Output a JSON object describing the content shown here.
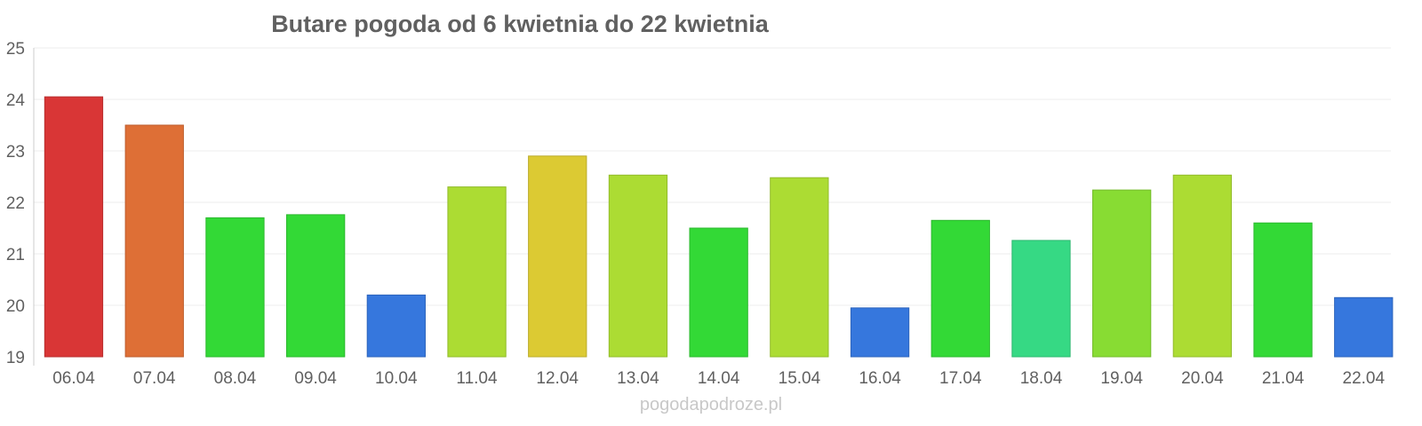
{
  "chart_data": {
    "type": "bar",
    "title": "Butare pogoda od 6 kwietnia do 22 kwietnia",
    "categories": [
      "06.04",
      "07.04",
      "08.04",
      "09.04",
      "10.04",
      "11.04",
      "12.04",
      "13.04",
      "14.04",
      "15.04",
      "16.04",
      "17.04",
      "18.04",
      "19.04",
      "20.04",
      "21.04",
      "22.04"
    ],
    "values": [
      24.05,
      23.5,
      21.7,
      21.76,
      20.2,
      22.3,
      22.9,
      22.53,
      21.5,
      22.48,
      19.95,
      21.65,
      21.26,
      22.24,
      22.53,
      21.6,
      20.15
    ],
    "colors": [
      "#d93636",
      "#de6f36",
      "#33d936",
      "#33d936",
      "#3677dd",
      "#acdc33",
      "#dcca33",
      "#acdc33",
      "#33d936",
      "#acdc33",
      "#3677dd",
      "#33d936",
      "#36d984",
      "#88dc33",
      "#acdc33",
      "#33d936",
      "#3677dd"
    ],
    "ylim": [
      19,
      25
    ],
    "yticks": [
      19,
      20,
      21,
      22,
      23,
      24,
      25
    ],
    "grid": true,
    "xlabel": "",
    "ylabel": ""
  },
  "watermark": "pogodapodroze.pl"
}
